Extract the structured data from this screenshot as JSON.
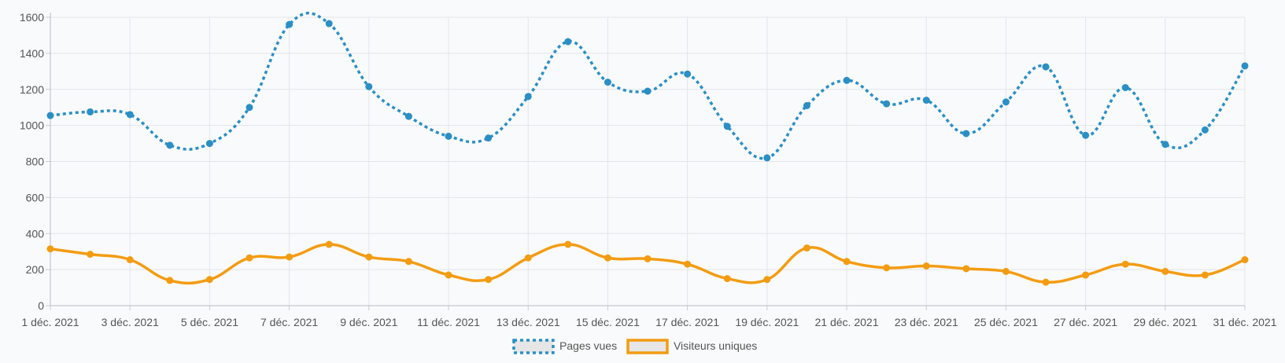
{
  "chart_data": {
    "type": "line",
    "x": [
      "1 déc. 2021",
      "2 déc. 2021",
      "3 déc. 2021",
      "4 déc. 2021",
      "5 déc. 2021",
      "6 déc. 2021",
      "7 déc. 2021",
      "8 déc. 2021",
      "9 déc. 2021",
      "10 déc. 2021",
      "11 déc. 2021",
      "12 déc. 2021",
      "13 déc. 2021",
      "14 déc. 2021",
      "15 déc. 2021",
      "16 déc. 2021",
      "17 déc. 2021",
      "18 déc. 2021",
      "19 déc. 2021",
      "20 déc. 2021",
      "21 déc. 2021",
      "22 déc. 2021",
      "23 déc. 2021",
      "24 déc. 2021",
      "25 déc. 2021",
      "26 déc. 2021",
      "27 déc. 2021",
      "28 déc. 2021",
      "29 déc. 2021",
      "30 déc. 2021",
      "31 déc. 2021"
    ],
    "x_tick_labels": [
      "1 déc. 2021",
      "3 déc. 2021",
      "5 déc. 2021",
      "7 déc. 2021",
      "9 déc. 2021",
      "11 déc. 2021",
      "13 déc. 2021",
      "15 déc. 2021",
      "17 déc. 2021",
      "19 déc. 2021",
      "21 déc. 2021",
      "23 déc. 2021",
      "25 déc. 2021",
      "27 déc. 2021",
      "29 déc. 2021",
      "31 déc. 2021"
    ],
    "y_ticks": [
      0,
      200,
      400,
      600,
      800,
      1000,
      1200,
      1400,
      1600
    ],
    "ylim": [
      0,
      1600
    ],
    "grid": true,
    "legend_position": "bottom",
    "series": [
      {
        "name": "Pages vues",
        "color": "#2a8fc4",
        "line_style": "dotted",
        "values": [
          1055,
          1075,
          1060,
          890,
          900,
          1100,
          1560,
          1565,
          1215,
          1050,
          940,
          930,
          1160,
          1465,
          1240,
          1190,
          1285,
          995,
          820,
          1110,
          1250,
          1120,
          1140,
          955,
          1130,
          1325,
          945,
          1210,
          895,
          975,
          1330
        ]
      },
      {
        "name": "Visiteurs uniques",
        "color": "#f39c12",
        "line_style": "solid",
        "values": [
          315,
          285,
          255,
          140,
          145,
          265,
          270,
          340,
          270,
          245,
          170,
          145,
          265,
          340,
          265,
          260,
          230,
          150,
          145,
          320,
          245,
          210,
          220,
          205,
          190,
          130,
          170,
          230,
          190,
          170,
          255
        ]
      }
    ]
  }
}
